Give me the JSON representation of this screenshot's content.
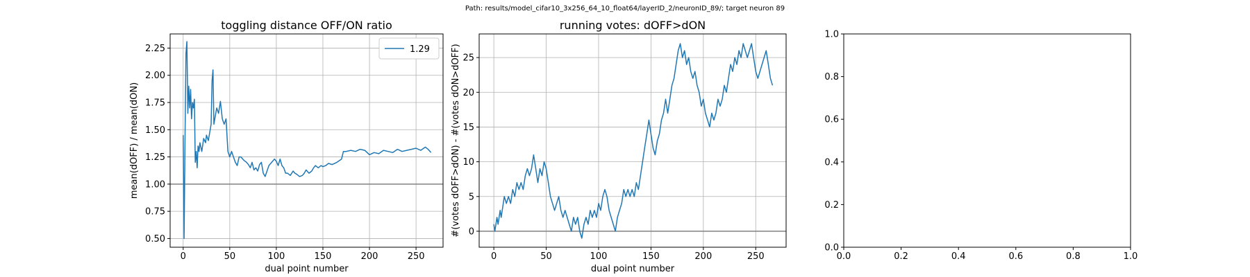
{
  "figure": {
    "suptitle": "Path: results/model_cifar10_3x256_64_10_float64/layerID_2/neuronID_89/; target neuron 89"
  },
  "colors": {
    "series": "#1f77b4",
    "refline": "#808080",
    "grid": "#b0b0b0"
  },
  "chart_data": [
    {
      "type": "line",
      "title": "toggling distance OFF/ON ratio",
      "xlabel": "dual point number",
      "ylabel": "mean(dOFF) / mean(dON)",
      "xlim": [
        -14,
        279
      ],
      "ylim": [
        0.42,
        2.38
      ],
      "xticks": [
        0,
        50,
        100,
        150,
        200,
        250
      ],
      "xtick_labels": [
        "0",
        "50",
        "100",
        "150",
        "200",
        "250"
      ],
      "yticks": [
        0.5,
        0.75,
        1.0,
        1.25,
        1.5,
        1.75,
        2.0,
        2.25
      ],
      "ytick_labels": [
        "0.50",
        "0.75",
        "1.00",
        "1.25",
        "1.50",
        "1.75",
        "2.00",
        "2.25"
      ],
      "grid": true,
      "legend": {
        "placement": "top-right",
        "entries": [
          "1.29"
        ]
      },
      "reference_line": {
        "y": 1.0
      },
      "series": [
        {
          "name": "1.29",
          "x": [
            0,
            1,
            2,
            3,
            4,
            5,
            6,
            7,
            8,
            9,
            10,
            11,
            12,
            13,
            14,
            15,
            16,
            17,
            18,
            20,
            22,
            24,
            25,
            27,
            29,
            30,
            31,
            32,
            33,
            35,
            36,
            38,
            40,
            42,
            44,
            46,
            48,
            50,
            52,
            54,
            56,
            58,
            60,
            62,
            65,
            68,
            70,
            72,
            74,
            76,
            78,
            80,
            82,
            84,
            86,
            88,
            90,
            92,
            95,
            98,
            100,
            102,
            104,
            106,
            108,
            110,
            112,
            115,
            118,
            120,
            122,
            125,
            128,
            130,
            132,
            135,
            138,
            140,
            142,
            145,
            148,
            150,
            153,
            156,
            160,
            165,
            170,
            172,
            175,
            180,
            185,
            190,
            195,
            200,
            205,
            210,
            215,
            220,
            225,
            230,
            235,
            240,
            245,
            250,
            255,
            260,
            263,
            266
          ],
          "values": [
            1.45,
            0.5,
            1.45,
            2.2,
            2.31,
            1.65,
            1.9,
            1.7,
            1.87,
            1.6,
            1.75,
            1.7,
            1.78,
            1.2,
            1.3,
            1.15,
            1.35,
            1.3,
            1.38,
            1.3,
            1.42,
            1.38,
            1.45,
            1.4,
            1.5,
            1.55,
            1.95,
            2.05,
            1.55,
            1.65,
            1.7,
            1.65,
            1.76,
            1.6,
            1.55,
            1.6,
            1.3,
            1.25,
            1.3,
            1.25,
            1.2,
            1.17,
            1.25,
            1.25,
            1.22,
            1.2,
            1.18,
            1.15,
            1.2,
            1.13,
            1.15,
            1.12,
            1.18,
            1.2,
            1.1,
            1.07,
            1.12,
            1.17,
            1.2,
            1.23,
            1.21,
            1.17,
            1.23,
            1.17,
            1.15,
            1.1,
            1.1,
            1.08,
            1.12,
            1.1,
            1.09,
            1.07,
            1.08,
            1.1,
            1.13,
            1.1,
            1.12,
            1.15,
            1.17,
            1.15,
            1.17,
            1.16,
            1.17,
            1.19,
            1.18,
            1.2,
            1.23,
            1.3,
            1.3,
            1.31,
            1.3,
            1.32,
            1.31,
            1.27,
            1.29,
            1.28,
            1.31,
            1.3,
            1.29,
            1.32,
            1.3,
            1.31,
            1.32,
            1.33,
            1.31,
            1.34,
            1.32,
            1.29
          ]
        }
      ]
    },
    {
      "type": "line",
      "title": "running votes: dOFF>dON",
      "xlabel": "dual point number",
      "ylabel": "#(votes dOFF>dON) - #(votes dON>dOFF)",
      "xlim": [
        -14,
        279
      ],
      "ylim": [
        -2.3,
        28.4
      ],
      "xticks": [
        0,
        50,
        100,
        150,
        200,
        250
      ],
      "xtick_labels": [
        "0",
        "50",
        "100",
        "150",
        "200",
        "250"
      ],
      "yticks": [
        0,
        5,
        10,
        15,
        20,
        25
      ],
      "ytick_labels": [
        "0",
        "5",
        "10",
        "15",
        "20",
        "25"
      ],
      "grid": true,
      "reference_line": {
        "y": 0
      },
      "series": [
        {
          "x": [
            0,
            1,
            2,
            3,
            4,
            5,
            6,
            7,
            8,
            9,
            10,
            12,
            14,
            16,
            18,
            20,
            22,
            24,
            26,
            28,
            30,
            32,
            34,
            36,
            38,
            40,
            42,
            44,
            46,
            48,
            50,
            52,
            54,
            56,
            58,
            60,
            62,
            64,
            66,
            68,
            70,
            72,
            74,
            76,
            78,
            80,
            82,
            84,
            86,
            88,
            90,
            92,
            94,
            96,
            98,
            100,
            102,
            104,
            106,
            108,
            110,
            112,
            114,
            116,
            118,
            120,
            122,
            124,
            126,
            128,
            130,
            132,
            134,
            136,
            138,
            140,
            142,
            144,
            146,
            148,
            150,
            152,
            154,
            156,
            158,
            160,
            162,
            164,
            166,
            168,
            170,
            172,
            174,
            176,
            178,
            180,
            182,
            184,
            186,
            188,
            190,
            192,
            194,
            196,
            198,
            200,
            202,
            204,
            206,
            208,
            210,
            212,
            214,
            216,
            218,
            220,
            222,
            224,
            226,
            228,
            230,
            232,
            234,
            236,
            238,
            240,
            242,
            244,
            246,
            248,
            250,
            252,
            254,
            256,
            258,
            260,
            262,
            264,
            266
          ],
          "values": [
            1,
            0,
            1,
            2,
            1,
            2,
            3,
            2,
            3,
            4,
            5,
            4,
            5,
            4,
            6,
            5,
            7,
            6,
            7,
            6,
            8,
            9,
            8,
            9,
            11,
            9,
            7,
            9,
            8,
            10,
            9,
            7,
            5,
            4,
            3,
            4,
            5,
            3,
            2,
            3,
            2,
            1,
            0,
            2,
            1,
            2,
            0,
            -1,
            1,
            2,
            1,
            3,
            2,
            3,
            2,
            4,
            3,
            5,
            6,
            5,
            3,
            2,
            1,
            0,
            2,
            3,
            4,
            6,
            5,
            6,
            5,
            6,
            5,
            7,
            6,
            8,
            10,
            12,
            14,
            16,
            14,
            12,
            11,
            13,
            14,
            16,
            17,
            19,
            17,
            19,
            21,
            22,
            24,
            26,
            27,
            25,
            26,
            24,
            25,
            23,
            22,
            23,
            21,
            20,
            18,
            19,
            17,
            16,
            15,
            17,
            16,
            17,
            19,
            18,
            19,
            21,
            20,
            22,
            24,
            23,
            25,
            24,
            26,
            25,
            27,
            26,
            25,
            26,
            27,
            25,
            23,
            22,
            23,
            24,
            25,
            26,
            24,
            22,
            21
          ]
        }
      ]
    },
    {
      "type": "line",
      "title": "",
      "xlabel": "",
      "ylabel": "",
      "xlim": [
        0,
        1
      ],
      "ylim": [
        0,
        1
      ],
      "xticks": [
        0,
        0.2,
        0.4,
        0.6,
        0.8,
        1.0
      ],
      "xtick_labels": [
        "0.0",
        "0.2",
        "0.4",
        "0.6",
        "0.8",
        "1.0"
      ],
      "yticks": [
        0,
        0.2,
        0.4,
        0.6,
        0.8,
        1.0
      ],
      "ytick_labels": [
        "0.0",
        "0.2",
        "0.4",
        "0.6",
        "0.8",
        "1.0"
      ],
      "grid": false,
      "series": []
    }
  ]
}
